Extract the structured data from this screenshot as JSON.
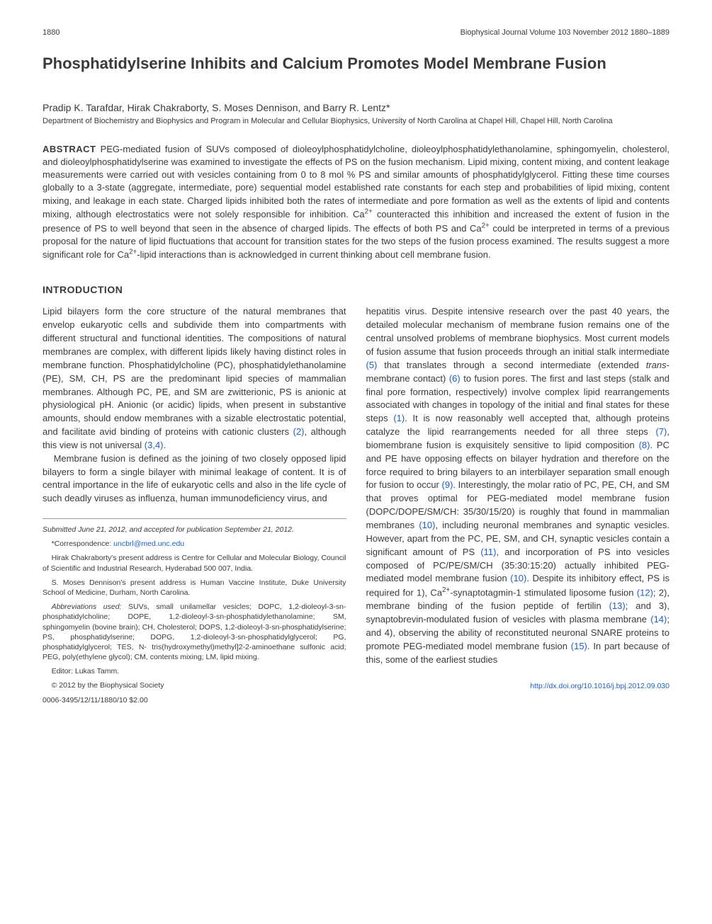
{
  "header": {
    "page_number": "1880",
    "journal_info": "Biophysical Journal   Volume 103   November 2012   1880–1889"
  },
  "title": "Phosphatidylserine Inhibits and Calcium Promotes Model Membrane Fusion",
  "authors": "Pradip K. Tarafdar, Hirak Chakraborty, S. Moses Dennison, and Barry R. Lentz*",
  "affiliation": "Department of Biochemistry and Biophysics and Program in Molecular and Cellular Biophysics, University of North Carolina at Chapel Hill, Chapel Hill, North Carolina",
  "abstract_label": "ABSTRACT",
  "abstract_text": "PEG-mediated fusion of SUVs composed of dioleoylphosphatidylcholine, dioleoylphosphatidylethanolamine, sphingomyelin, cholesterol, and dioleoylphosphatidylserine was examined to investigate the effects of PS on the fusion mechanism. Lipid mixing, content mixing, and content leakage measurements were carried out with vesicles containing from 0 to 8 mol % PS and similar amounts of phosphatidylglycerol. Fitting these time courses globally to a 3-state (aggregate, intermediate, pore) sequential model established rate constants for each step and probabilities of lipid mixing, content mixing, and leakage in each state. Charged lipids inhibited both the rates of intermediate and pore formation as well as the extents of lipid and contents mixing, although electrostatics were not solely responsible for inhibition. Ca²⁺ counteracted this inhibition and increased the extent of fusion in the presence of PS to well beyond that seen in the absence of charged lipids. The effects of both PS and Ca²⁺ could be interpreted in terms of a previous proposal for the nature of lipid fluctuations that account for transition states for the two steps of the fusion process examined. The results suggest a more significant role for Ca²⁺-lipid interactions than is acknowledged in current thinking about cell membrane fusion.",
  "introduction_heading": "INTRODUCTION",
  "left_col": {
    "p1": "Lipid bilayers form the core structure of the natural membranes that envelop eukaryotic cells and subdivide them into compartments with different structural and functional identities. The compositions of natural membranes are complex, with different lipids likely having distinct roles in membrane function. Phosphatidylcholine (PC), phosphatidylethanolamine (PE), SM, CH, PS are the predominant lipid species of mammalian membranes. Although PC, PE, and SM are zwitterionic, PS is anionic at physiological pH. Anionic (or acidic) lipids, when present in substantive amounts, should endow membranes with a sizable electrostatic potential, and facilitate avid binding of proteins with cationic clusters (2), although this view is not universal (3,4).",
    "p2": "Membrane fusion is defined as the joining of two closely opposed lipid bilayers to form a single bilayer with minimal leakage of content. It is of central importance in the life of eukaryotic cells and also in the life cycle of such deadly viruses as influenza, human immunodeficiency virus, and"
  },
  "right_col": {
    "p1": "hepatitis virus. Despite intensive research over the past 40 years, the detailed molecular mechanism of membrane fusion remains one of the central unsolved problems of membrane biophysics. Most current models of fusion assume that fusion proceeds through an initial stalk intermediate (5) that translates through a second intermediate (extended trans-membrane contact) (6) to fusion pores. The first and last steps (stalk and final pore formation, respectively) involve complex lipid rearrangements associated with changes in topology of the initial and final states for these steps (1). It is now reasonably well accepted that, although proteins catalyze the lipid rearrangements needed for all three steps (7), biomembrane fusion is exquisitely sensitive to lipid composition (8). PC and PE have opposing effects on bilayer hydration and therefore on the force required to bring bilayers to an interbilayer separation small enough for fusion to occur (9). Interestingly, the molar ratio of PC, PE, CH, and SM that proves optimal for PEG-mediated model membrane fusion (DOPC/DOPE/SM/CH: 35/30/15/20) is roughly that found in mammalian membranes (10), including neuronal membranes and synaptic vesicles. However, apart from the PC, PE, SM, and CH, synaptic vesicles contain a significant amount of PS (11), and incorporation of PS into vesicles composed of PC/PE/SM/CH (35:30:15:20) actually inhibited PEG-mediated model membrane fusion (10). Despite its inhibitory effect, PS is required for 1), Ca²⁺-synaptotagmin-1 stimulated liposome fusion (12); 2), membrane binding of the fusion peptide of fertilin (13); and 3), synaptobrevin-modulated fusion of vesicles with plasma membrane (14); and 4), observing the ability of reconstituted neuronal SNARE proteins to promote PEG-mediated model membrane fusion (15). In part because of this, some of the earliest studies"
  },
  "footnotes": {
    "submitted": "Submitted June 21, 2012, and accepted for publication September 21, 2012.",
    "correspondence": "*Correspondence: uncbrl@med.unc.edu",
    "hirak": "Hirak Chakraborty's present address is Centre for Cellular and Molecular Biology, Council of Scientific and Industrial Research, Hyderabad 500 007, India.",
    "moses": "S. Moses Dennison's present address is Human Vaccine Institute, Duke University School of Medicine, Durham, North Carolina.",
    "abbrev_label": "Abbreviations used:",
    "abbrev": " SUVs, small unilamellar vesicles; DOPC, 1,2-dioleoyl-3-sn-phosphatidylcholine; DOPE, 1,2-dioleoyl-3-sn-phosphatidylethanolamine; SM, sphingomyelin (bovine brain); CH, Cholesterol; DOPS, 1,2-dioleoyl-3-sn-phosphatidylserine; PS, phosphatidylserine; DOPG, 1,2-dioleoyl-3-sn-phosphatidylglycerol; PG, phosphatidylglycerol; TES, N- tris(hydroxymethyl)methyl]2-2-aminoethane sulfonic acid; PEG, poly(ethylene glycol); CM, contents mixing; LM, lipid mixing.",
    "editor": "Editor: Lukas Tamm.",
    "copyright": "© 2012 by the Biophysical Society",
    "issn": "0006-3495/12/11/1880/10   $2.00",
    "doi": "http://dx.doi.org/10.1016/j.bpj.2012.09.030"
  },
  "refs": {
    "r1": "(1)",
    "r2": "(2)",
    "r3": "(3,4)",
    "r5": "(5)",
    "r6": "(6)",
    "r7": "(7)",
    "r8": "(8)",
    "r9": "(9)",
    "r10": "(10)",
    "r11": "(11)",
    "r12": "(12)",
    "r13": "(13)",
    "r14": "(14)",
    "r15": "(15)"
  }
}
